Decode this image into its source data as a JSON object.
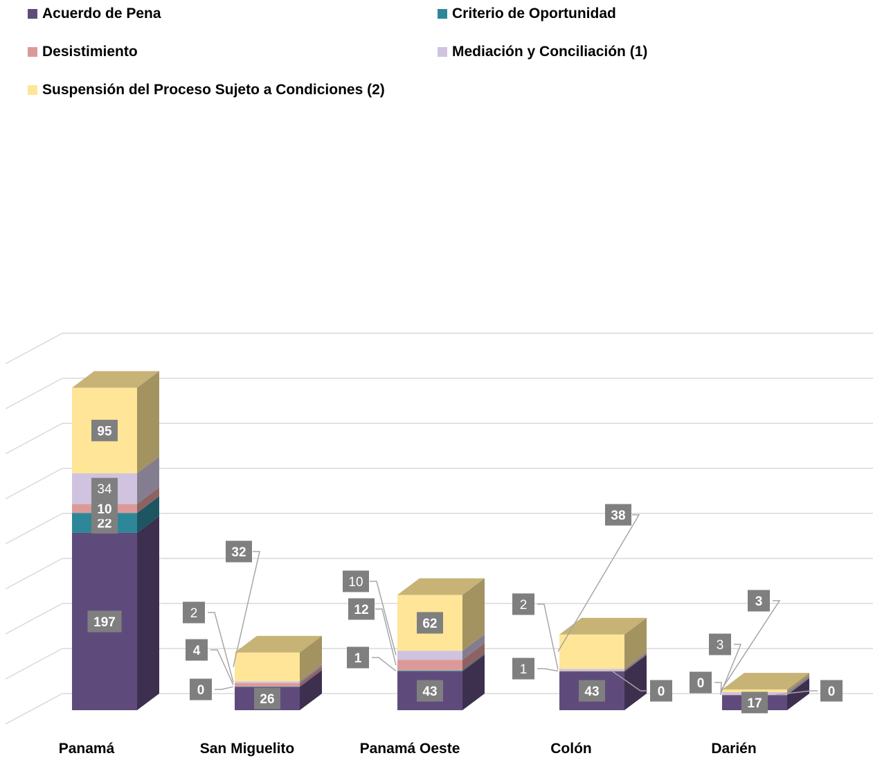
{
  "chart_data": {
    "type": "bar",
    "stacked": true,
    "three_d": true,
    "categories": [
      "Panamá",
      "San Miguelito",
      "Panamá Oeste",
      "Colón",
      "Darién"
    ],
    "series": [
      {
        "name": "Acuerdo de Pena",
        "color": "#5f4b7b",
        "values": [
          197,
          26,
          43,
          43,
          17
        ]
      },
      {
        "name": "Criterio de Oportunidad",
        "color": "#2e8799",
        "values": [
          22,
          0,
          1,
          0,
          0
        ]
      },
      {
        "name": "Desistimiento",
        "color": "#db9a99",
        "values": [
          10,
          4,
          12,
          1,
          0
        ]
      },
      {
        "name": "Mediación y Conciliación (1)",
        "color": "#cfc3df",
        "values": [
          34,
          2,
          10,
          2,
          3
        ]
      },
      {
        "name": "Suspensión del Proceso Sujeto a Condiciones (2)",
        "color": "#ffe597",
        "values": [
          95,
          32,
          62,
          38,
          3
        ]
      }
    ],
    "label_bold": [
      [
        true,
        true,
        true,
        true,
        true
      ],
      [
        true,
        true,
        true,
        true,
        true
      ],
      [
        true,
        true,
        true,
        false,
        true
      ],
      [
        false,
        false,
        false,
        false,
        false
      ],
      [
        true,
        true,
        true,
        true,
        true
      ]
    ],
    "ylim": [
      0,
      400
    ],
    "grid": true,
    "legend_position": "top",
    "title": "",
    "xlabel": "",
    "ylabel": ""
  }
}
